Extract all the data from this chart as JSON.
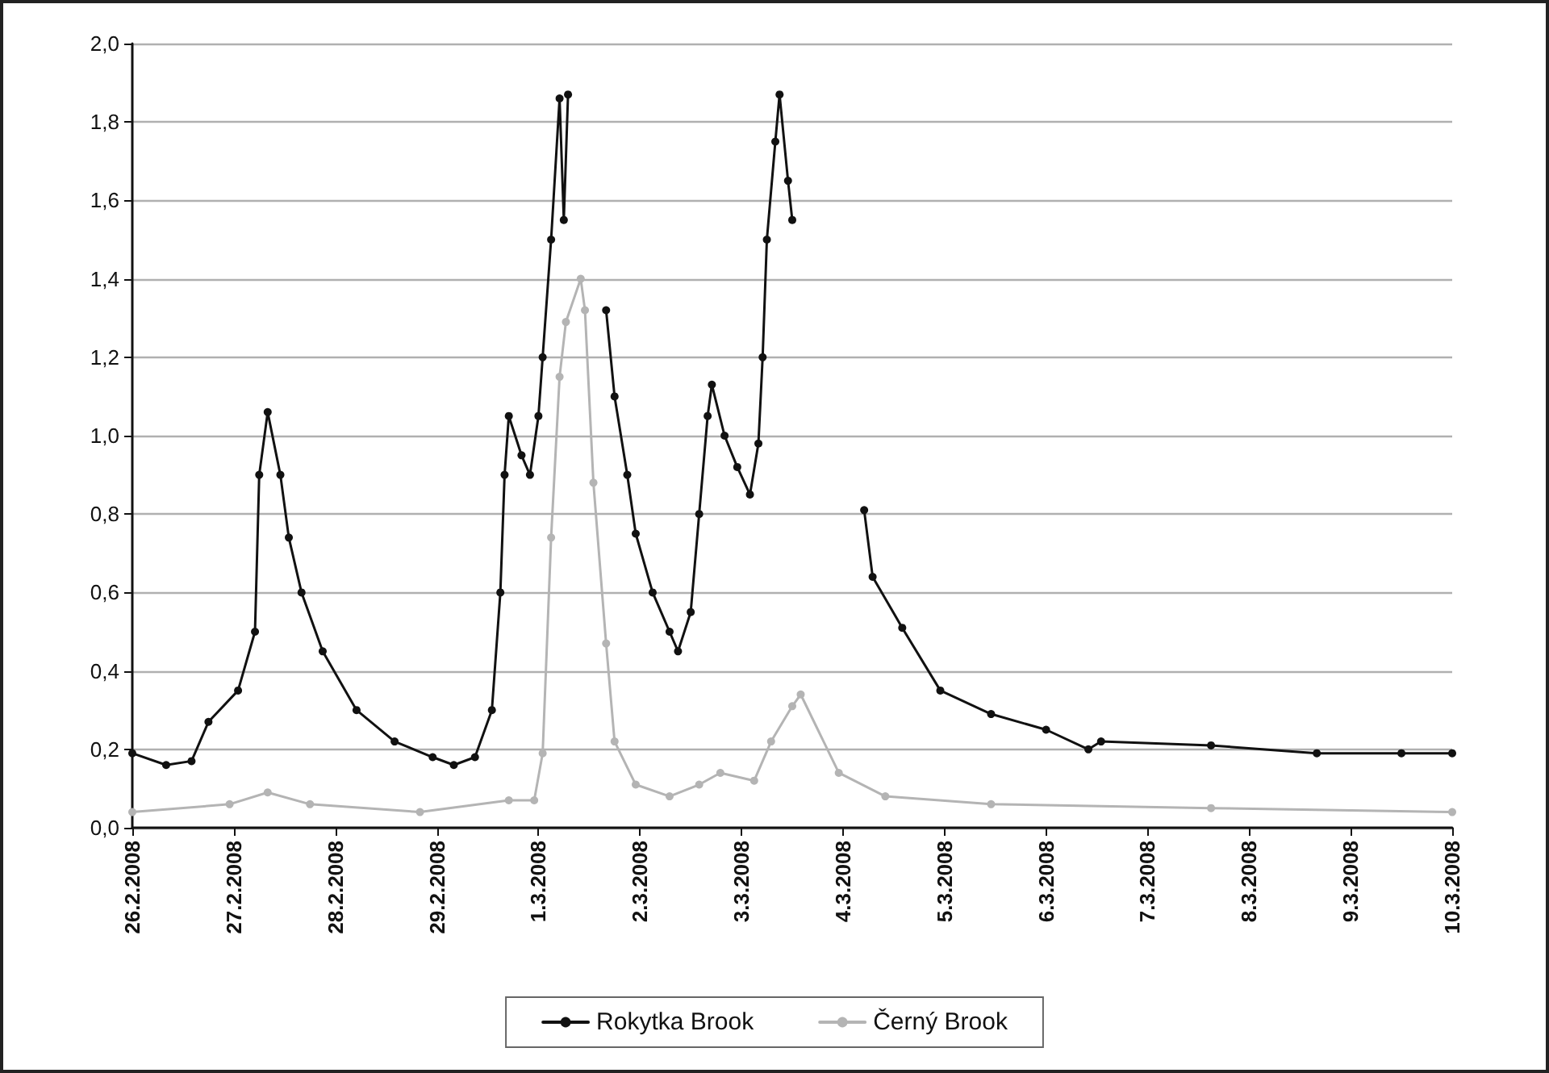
{
  "chart_data": {
    "type": "line",
    "xlim": [
      "2008-02-26",
      "2008-03-10"
    ],
    "xticks": [
      {
        "value": "2008-02-26",
        "label": "26.2.2008"
      },
      {
        "value": "2008-02-27",
        "label": "27.2.2008"
      },
      {
        "value": "2008-02-28",
        "label": "28.2.2008"
      },
      {
        "value": "2008-02-29",
        "label": "29.2.2008"
      },
      {
        "value": "2008-03-01",
        "label": "1.3.2008"
      },
      {
        "value": "2008-03-02",
        "label": "2.3.2008"
      },
      {
        "value": "2008-03-03",
        "label": "3.3.2008"
      },
      {
        "value": "2008-03-04",
        "label": "4.3.2008"
      },
      {
        "value": "2008-03-05",
        "label": "5.3.2008"
      },
      {
        "value": "2008-03-06",
        "label": "6.3.2008"
      },
      {
        "value": "2008-03-07",
        "label": "7.3.2008"
      },
      {
        "value": "2008-03-08",
        "label": "8.3.2008"
      },
      {
        "value": "2008-03-09",
        "label": "9.3.2008"
      },
      {
        "value": "2008-03-10",
        "label": "10.3.2008"
      }
    ],
    "ylim": [
      0,
      2
    ],
    "yticks": [
      {
        "value": 0,
        "label": "0,0"
      },
      {
        "value": 0.2,
        "label": "0,2"
      },
      {
        "value": 0.4,
        "label": "0,4"
      },
      {
        "value": 0.6,
        "label": "0,6"
      },
      {
        "value": 0.8,
        "label": "0,8"
      },
      {
        "value": 1,
        "label": "1,0"
      },
      {
        "value": 1.2,
        "label": "1,2"
      },
      {
        "value": 1.4,
        "label": "1,4"
      },
      {
        "value": 1.6,
        "label": "1,6"
      },
      {
        "value": 1.8,
        "label": "1,8"
      },
      {
        "value": 2,
        "label": "2,0"
      }
    ],
    "grid": "y",
    "legend": "bottom",
    "marker": "circle",
    "line_style": "solid",
    "series": [
      {
        "name": "Rokytka Brook",
        "color": "#111111",
        "x": [
          "2008-02-26T00:00",
          "2008-02-26T08:00",
          "2008-02-26T14:00",
          "2008-02-26T18:00",
          "2008-02-27T01:00",
          "2008-02-27T05:00",
          "2008-02-27T06:00",
          "2008-02-27T08:00",
          "2008-02-27T11:00",
          "2008-02-27T13:00",
          "2008-02-27T16:00",
          "2008-02-27T21:00",
          "2008-02-28T05:00",
          "2008-02-28T14:00",
          "2008-02-28T23:00",
          "2008-02-29T04:00",
          "2008-02-29T09:00",
          "2008-02-29T13:00",
          "2008-02-29T15:00",
          "2008-02-29T16:00",
          "2008-02-29T17:00",
          "2008-02-29T20:00",
          "2008-02-29T22:00",
          "2008-03-01T00:00",
          "2008-03-01T01:00",
          "2008-03-01T03:00",
          "2008-03-01T05:00",
          "2008-03-01T06:00",
          "2008-03-01T07:00",
          "2008-03-01T10:00",
          "2008-03-01T16:00",
          "2008-03-01T18:00",
          "2008-03-01T21:00",
          "2008-03-01T23:00",
          "2008-03-02T03:00",
          "2008-03-02T07:00",
          "2008-03-02T09:00",
          "2008-03-02T12:00",
          "2008-03-02T14:00",
          "2008-03-02T16:00",
          "2008-03-02T17:00",
          "2008-03-02T20:00",
          "2008-03-02T23:00",
          "2008-03-03T02:00",
          "2008-03-03T04:00",
          "2008-03-03T05:00",
          "2008-03-03T06:00",
          "2008-03-03T08:00",
          "2008-03-03T09:00",
          "2008-03-03T11:00",
          "2008-03-03T12:00",
          "2008-03-03T18:00",
          "2008-03-04T05:00",
          "2008-03-04T07:00",
          "2008-03-04T14:00",
          "2008-03-04T23:00",
          "2008-03-05T11:00",
          "2008-03-06T00:00",
          "2008-03-06T10:00",
          "2008-03-06T13:00",
          "2008-03-07T15:00",
          "2008-03-08T16:00",
          "2008-03-09T12:00",
          "2008-03-10T00:00"
        ],
        "values": [
          0.19,
          0.16,
          0.17,
          0.27,
          0.35,
          0.5,
          0.9,
          1.06,
          0.9,
          0.74,
          0.6,
          0.45,
          0.3,
          0.22,
          0.18,
          0.16,
          0.18,
          0.3,
          0.6,
          0.9,
          1.05,
          0.95,
          0.9,
          1.05,
          1.2,
          1.5,
          1.86,
          1.55,
          1.87,
          null,
          1.32,
          1.1,
          0.9,
          0.75,
          0.6,
          0.5,
          0.45,
          0.55,
          0.8,
          1.05,
          1.13,
          1.0,
          0.92,
          0.85,
          0.98,
          1.2,
          1.5,
          1.75,
          1.87,
          1.65,
          1.55,
          null,
          0.81,
          0.64,
          0.51,
          0.35,
          0.29,
          0.25,
          0.2,
          0.22,
          0.21,
          0.19,
          0.19,
          0.19
        ]
      },
      {
        "name": "Černý Brook",
        "color": "#b4b4b4",
        "x": [
          "2008-02-26T00:00",
          "2008-02-26T23:00",
          "2008-02-27T08:00",
          "2008-02-27T18:00",
          "2008-02-28T20:00",
          "2008-02-29T17:00",
          "2008-02-29T23:00",
          "2008-03-01T01:00",
          "2008-03-01T03:00",
          "2008-03-01T05:00",
          "2008-03-01T06:30",
          "2008-03-01T10:00",
          "2008-03-01T11:00",
          "2008-03-01T13:00",
          "2008-03-01T16:00",
          "2008-03-01T18:00",
          "2008-03-01T23:00",
          "2008-03-02T07:00",
          "2008-03-02T14:00",
          "2008-03-02T19:00",
          "2008-03-03T03:00",
          "2008-03-03T07:00",
          "2008-03-03T12:00",
          "2008-03-03T14:00",
          "2008-03-03T23:00",
          "2008-03-04T10:00",
          "2008-03-05T11:00",
          "2008-03-07T15:00",
          "2008-03-10T00:00"
        ],
        "values": [
          0.04,
          0.06,
          0.09,
          0.06,
          0.04,
          0.07,
          0.07,
          0.19,
          0.74,
          1.15,
          1.29,
          1.4,
          1.32,
          0.88,
          0.47,
          0.22,
          0.11,
          0.08,
          0.11,
          0.14,
          0.12,
          0.22,
          0.31,
          0.34,
          0.14,
          0.08,
          0.06,
          0.05,
          0.04
        ]
      }
    ]
  }
}
